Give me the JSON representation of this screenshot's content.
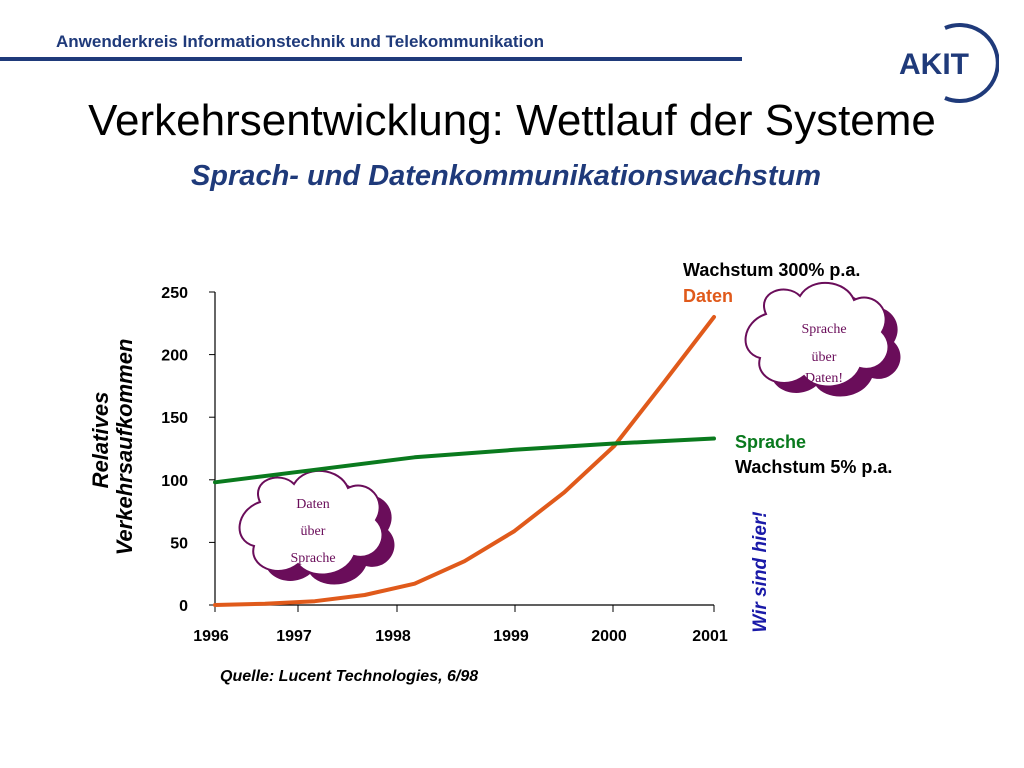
{
  "header": {
    "title": "Anwenderkreis  Informationstechnik und Telekommunikation",
    "logo_text": "AKIT"
  },
  "slide": {
    "title": "Verkehrsentwicklung: Wettlauf der Systeme",
    "subtitle": "Sprach- und Datenkommunikationswachstum",
    "source": "Quelle: Lucent Technologies, 6/98"
  },
  "annotations": {
    "daten_growth": "Wachstum 300% p.a.",
    "daten_label": "Daten",
    "sprache_label": "Sprache",
    "sprache_growth": "Wachstum 5% p.a.",
    "here": "Wir sind hier!",
    "cloud_right": [
      "Sprache",
      "über",
      "Daten!"
    ],
    "cloud_left": [
      "Daten",
      "über",
      "Sprache"
    ]
  },
  "colors": {
    "daten": "#e05a1b",
    "sprache": "#0a7a1e",
    "brand": "#1f3a7a",
    "here": "#1a1aa8",
    "cloud": "#6a0d5a"
  },
  "chart_data": {
    "type": "line",
    "title": "",
    "xlabel": "",
    "ylabel": "Relatives Verkehrsaufkommen",
    "ylabel_lines": [
      "Relatives",
      "Verkehrsaufkommen"
    ],
    "x_ticks": [
      "1996",
      "1997",
      "1998",
      "1999",
      "2000",
      "2001"
    ],
    "y_ticks": [
      "0",
      "50",
      "100",
      "150",
      "200",
      "250"
    ],
    "xlim": [
      1996,
      2001
    ],
    "ylim": [
      0,
      250
    ],
    "series": [
      {
        "name": "Daten",
        "x": [
          1996,
          1996.5,
          1997,
          1997.5,
          1998,
          1998.5,
          1999,
          1999.5,
          2000,
          2000.5,
          2001
        ],
        "y": [
          0,
          1,
          3,
          8,
          17,
          35,
          59,
          90,
          127,
          178,
          230
        ]
      },
      {
        "name": "Sprache",
        "x": [
          1996,
          1997,
          1998,
          1999,
          2000,
          2001
        ],
        "y": [
          98,
          108,
          118,
          124,
          129,
          133
        ]
      }
    ]
  }
}
